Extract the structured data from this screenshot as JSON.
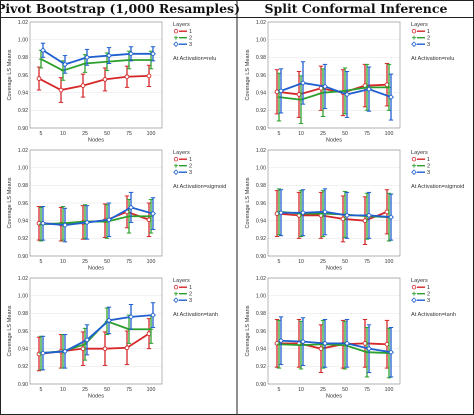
{
  "column_titles": [
    "Pivot Bootstrap (1,000 Resamples)",
    "Split Conformal Inference"
  ],
  "legend": {
    "title": "Layers",
    "entries": [
      "1",
      "2",
      "3"
    ]
  },
  "colors": {
    "1": "#d62728",
    "2": "#2ca02c",
    "3": "#1f5fd0"
  },
  "chart_data": [
    {
      "type": "line",
      "column": "Pivot Bootstrap (1,000 Resamples)",
      "annotation": "At Activation=relu",
      "xlabel": "Nodes",
      "ylabel": "Coverage LS Means",
      "categories": [
        "5",
        "10",
        "25",
        "50",
        "75",
        "100"
      ],
      "ylim": [
        0.9,
        1.02
      ],
      "yticks": [
        "0.90",
        "0.92",
        "0.94",
        "0.96",
        "0.98",
        "1.00",
        "1.02"
      ],
      "series": [
        {
          "name": "1",
          "marker": "circle",
          "values": [
            0.956,
            0.943,
            0.948,
            0.955,
            0.958,
            0.959
          ],
          "err": [
            0.013,
            0.014,
            0.013,
            0.013,
            0.012,
            0.012
          ]
        },
        {
          "name": "2",
          "marker": "plus",
          "values": [
            0.978,
            0.965,
            0.973,
            0.975,
            0.977,
            0.977
          ],
          "err": [
            0.01,
            0.011,
            0.01,
            0.01,
            0.01,
            0.01
          ]
        },
        {
          "name": "3",
          "marker": "diamond",
          "values": [
            0.988,
            0.972,
            0.98,
            0.982,
            0.984,
            0.984
          ],
          "err": [
            0.008,
            0.01,
            0.009,
            0.009,
            0.008,
            0.008
          ]
        }
      ]
    },
    {
      "type": "line",
      "column": "Split Conformal Inference",
      "annotation": "At Activation=relu",
      "xlabel": "Nodes",
      "ylabel": "Coverage LS Means",
      "categories": [
        "5",
        "10",
        "25",
        "50",
        "75",
        "100"
      ],
      "ylim": [
        0.9,
        1.02
      ],
      "yticks": [
        "0.90",
        "0.92",
        "0.94",
        "0.96",
        "0.98",
        "1.00",
        "1.02"
      ],
      "series": [
        {
          "name": "1",
          "marker": "circle",
          "values": [
            0.941,
            0.938,
            0.945,
            0.94,
            0.948,
            0.949
          ],
          "err": [
            0.025,
            0.026,
            0.025,
            0.026,
            0.024,
            0.024
          ]
        },
        {
          "name": "2",
          "marker": "plus",
          "values": [
            0.935,
            0.932,
            0.94,
            0.942,
            0.946,
            0.946
          ],
          "err": [
            0.027,
            0.027,
            0.027,
            0.026,
            0.026,
            0.026
          ]
        },
        {
          "name": "3",
          "marker": "diamond",
          "values": [
            0.942,
            0.951,
            0.947,
            0.938,
            0.944,
            0.935
          ],
          "err": [
            0.025,
            0.024,
            0.025,
            0.026,
            0.025,
            0.026
          ]
        }
      ]
    },
    {
      "type": "line",
      "column": "Pivot Bootstrap (1,000 Resamples)",
      "annotation": "At Activation=sigmoid",
      "xlabel": "Nodes",
      "ylabel": "Coverage LS Means",
      "categories": [
        "5",
        "10",
        "25",
        "50",
        "75",
        "100"
      ],
      "ylim": [
        0.9,
        1.02
      ],
      "yticks": [
        "0.90",
        "0.92",
        "0.94",
        "0.96",
        "0.98",
        "1.00",
        "1.02"
      ],
      "series": [
        {
          "name": "1",
          "marker": "circle",
          "values": [
            0.937,
            0.936,
            0.938,
            0.94,
            0.95,
            0.941
          ],
          "err": [
            0.019,
            0.019,
            0.019,
            0.019,
            0.018,
            0.019
          ]
        },
        {
          "name": "2",
          "marker": "plus",
          "values": [
            0.936,
            0.937,
            0.939,
            0.939,
            0.945,
            0.945
          ],
          "err": [
            0.019,
            0.019,
            0.019,
            0.019,
            0.019,
            0.019
          ]
        },
        {
          "name": "3",
          "marker": "diamond",
          "values": [
            0.937,
            0.935,
            0.938,
            0.941,
            0.955,
            0.948
          ],
          "err": [
            0.019,
            0.019,
            0.019,
            0.019,
            0.017,
            0.018
          ]
        }
      ]
    },
    {
      "type": "line",
      "column": "Split Conformal Inference",
      "annotation": "At Activation=sigmoid",
      "xlabel": "Nodes",
      "ylabel": "Coverage LS Means",
      "categories": [
        "5",
        "10",
        "25",
        "50",
        "75",
        "100"
      ],
      "ylim": [
        0.9,
        1.02
      ],
      "yticks": [
        "0.90",
        "0.92",
        "0.94",
        "0.96",
        "0.98",
        "1.00",
        "1.02"
      ],
      "series": [
        {
          "name": "1",
          "marker": "circle",
          "values": [
            0.948,
            0.946,
            0.946,
            0.942,
            0.94,
            0.95
          ],
          "err": [
            0.026,
            0.026,
            0.026,
            0.026,
            0.027,
            0.025
          ]
        },
        {
          "name": "2",
          "marker": "plus",
          "values": [
            0.95,
            0.948,
            0.948,
            0.947,
            0.945,
            0.944
          ],
          "err": [
            0.026,
            0.026,
            0.026,
            0.026,
            0.026,
            0.027
          ]
        },
        {
          "name": "3",
          "marker": "diamond",
          "values": [
            0.949,
            0.949,
            0.95,
            0.946,
            0.946,
            0.944
          ],
          "err": [
            0.026,
            0.026,
            0.026,
            0.026,
            0.026,
            0.026
          ]
        }
      ]
    },
    {
      "type": "line",
      "column": "Pivot Bootstrap (1,000 Resamples)",
      "annotation": "At Activation=tanh",
      "xlabel": "Nodes",
      "ylabel": "Coverage LS Means",
      "categories": [
        "5",
        "10",
        "25",
        "50",
        "75",
        "100"
      ],
      "ylim": [
        0.9,
        1.02
      ],
      "yticks": [
        "0.90",
        "0.92",
        "0.94",
        "0.96",
        "0.98",
        "1.00",
        "1.02"
      ],
      "series": [
        {
          "name": "1",
          "marker": "circle",
          "values": [
            0.934,
            0.937,
            0.94,
            0.94,
            0.941,
            0.957
          ],
          "err": [
            0.019,
            0.019,
            0.019,
            0.019,
            0.019,
            0.017
          ]
        },
        {
          "name": "2",
          "marker": "plus",
          "values": [
            0.935,
            0.937,
            0.945,
            0.971,
            0.962,
            0.962
          ],
          "err": [
            0.019,
            0.019,
            0.018,
            0.015,
            0.016,
            0.016
          ]
        },
        {
          "name": "3",
          "marker": "diamond",
          "values": [
            0.935,
            0.937,
            0.95,
            0.972,
            0.976,
            0.978
          ],
          "err": [
            0.019,
            0.019,
            0.017,
            0.015,
            0.014,
            0.014
          ]
        }
      ]
    },
    {
      "type": "line",
      "column": "Split Conformal Inference",
      "annotation": "At Activation=tanh",
      "xlabel": "Nodes",
      "ylabel": "Coverage LS Means",
      "categories": [
        "5",
        "10",
        "25",
        "50",
        "75",
        "100"
      ],
      "ylim": [
        0.9,
        1.02
      ],
      "yticks": [
        "0.90",
        "0.92",
        "0.94",
        "0.96",
        "0.98",
        "1.00",
        "1.02"
      ],
      "series": [
        {
          "name": "1",
          "marker": "circle",
          "values": [
            0.946,
            0.946,
            0.94,
            0.945,
            0.946,
            0.945
          ],
          "err": [
            0.027,
            0.027,
            0.027,
            0.027,
            0.027,
            0.027
          ]
        },
        {
          "name": "2",
          "marker": "plus",
          "values": [
            0.945,
            0.944,
            0.945,
            0.944,
            0.936,
            0.935
          ],
          "err": [
            0.027,
            0.027,
            0.027,
            0.027,
            0.028,
            0.028
          ]
        },
        {
          "name": "3",
          "marker": "diamond",
          "values": [
            0.949,
            0.948,
            0.946,
            0.946,
            0.94,
            0.936
          ],
          "err": [
            0.027,
            0.027,
            0.027,
            0.027,
            0.027,
            0.028
          ]
        }
      ]
    }
  ]
}
